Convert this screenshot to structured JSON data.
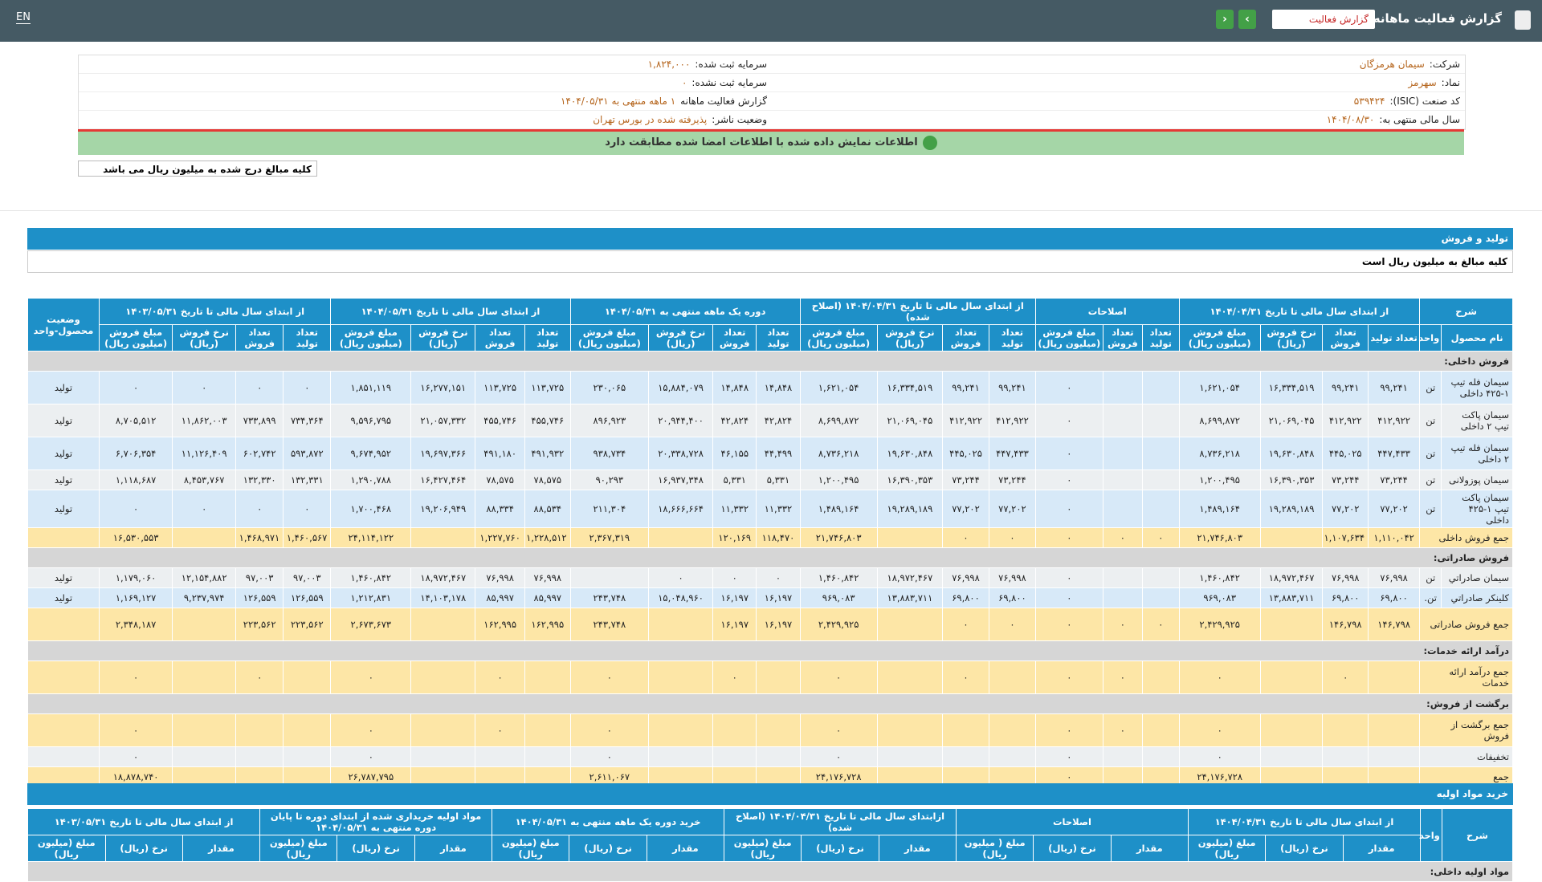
{
  "header": {
    "title": "گزارش فعالیت ماهانه",
    "select": "گزارش فعالیت",
    "lang": "EN"
  },
  "info": {
    "rows": [
      [
        {
          "label": "شرکت:",
          "value": "سیمان هرمزگان"
        },
        {
          "label": "سرمایه ثبت شده:",
          "value": "۱,۸۲۴,۰۰۰"
        }
      ],
      [
        {
          "label": "نماد:",
          "value": "سهرمز"
        },
        {
          "label": "سرمایه ثبت نشده:",
          "value": "۰"
        }
      ],
      [
        {
          "label": "کد صنعت (ISIC):",
          "value": "۵۳۹۴۲۴"
        },
        {
          "label": "گزارش فعالیت ماهانه",
          "value": "۱ ماهه منتهی به ۱۴۰۴/۰۵/۳۱"
        }
      ],
      [
        {
          "label": "سال مالی منتهی به:",
          "value": "۱۴۰۴/۰۸/۳۰"
        },
        {
          "label": "وضعیت ناشر:",
          "value": "پذیرفته شده در بورس تهران"
        }
      ]
    ],
    "notice": "اطلاعات نمایش داده شده با اطلاعات امضا شده مطابقت دارد",
    "note": "کلیه مبالغ درج شده به میلیون ریال می باشد"
  },
  "sales": {
    "title": "تولید و فروش",
    "subtitle": "کلیه مبالغ به میلیون ریال است",
    "group_headers": [
      "شرح",
      "از ابتدای سال مالی تا تاریخ ۱۴۰۴/۰۴/۳۱",
      "اصلاحات",
      "از ابتدای سال مالی تا تاریخ ۱۴۰۴/۰۴/۳۱ (اصلاح شده)",
      "دوره یک ماهه منتهی به ۱۴۰۴/۰۵/۳۱",
      "از ابتدای سال مالی تا تاریخ ۱۴۰۴/۰۵/۳۱",
      "از ابتدای سال مالی تا تاریخ ۱۴۰۳/۰۵/۳۱"
    ],
    "status_header": "وضعیت محصول-واحد",
    "col_headers": [
      "نام محصول",
      "واحد",
      "تعداد تولید",
      "تعداد فروش",
      "نرخ فروش (ریال)",
      "مبلغ فروش (میلیون ریال)",
      "تعداد تولید",
      "تعداد فروش",
      "مبلغ فروش (میلیون ریال)",
      "تعداد تولید",
      "تعداد فروش",
      "نرخ فروش (ریال)",
      "مبلغ فروش (میلیون ریال)",
      "تعداد تولید",
      "تعداد فروش",
      "نرخ فروش (ریال)",
      "مبلغ فروش (میلیون ریال)",
      "تعداد تولید",
      "تعداد فروش",
      "نرخ فروش (ریال)",
      "مبلغ فروش (میلیون ریال)",
      "تعداد تولید",
      "تعداد فروش",
      "نرخ فروش (ریال)",
      "مبلغ فروش (میلیون ریال)"
    ],
    "rows": [
      {
        "section": "فروش داخلی:"
      },
      {
        "name": "سیمان فله تیپ ۱-۴۲۵ داخلی",
        "unit": "تن",
        "cells": [
          "۹۹,۲۴۱",
          "۹۹,۲۴۱",
          "۱۶,۳۳۴,۵۱۹",
          "۱,۶۲۱,۰۵۴",
          null,
          null,
          "۰",
          "۹۹,۲۴۱",
          "۹۹,۲۴۱",
          "۱۶,۳۳۴,۵۱۹",
          "۱,۶۲۱,۰۵۴",
          "۱۴,۸۴۸",
          "۱۴,۸۴۸",
          "۱۵,۸۸۴,۰۷۹",
          "۲۳۰,۰۶۵",
          "۱۱۳,۷۲۵",
          "۱۱۳,۷۲۵",
          "۱۶,۲۷۷,۱۵۱",
          "۱,۸۵۱,۱۱۹",
          "۰",
          "۰",
          "۰",
          "۰"
        ],
        "status": "تولید"
      },
      {
        "name": "سیمان پاکت تیپ ۲ داخلی",
        "unit": "تن",
        "cells": [
          "۴۱۲,۹۲۲",
          "۴۱۲,۹۲۲",
          "۲۱,۰۶۹,۰۴۵",
          "۸,۶۹۹,۸۷۲",
          null,
          null,
          "۰",
          "۴۱۲,۹۲۲",
          "۴۱۲,۹۲۲",
          "۲۱,۰۶۹,۰۴۵",
          "۸,۶۹۹,۸۷۲",
          "۴۲,۸۲۴",
          "۴۲,۸۲۴",
          "۲۰,۹۴۴,۴۰۰",
          "۸۹۶,۹۲۳",
          "۴۵۵,۷۴۶",
          "۴۵۵,۷۴۶",
          "۲۱,۰۵۷,۳۳۲",
          "۹,۵۹۶,۷۹۵",
          "۷۳۴,۳۶۴",
          "۷۳۳,۸۹۹",
          "۱۱,۸۶۲,۰۰۳",
          "۸,۷۰۵,۵۱۲"
        ],
        "status": "تولید"
      },
      {
        "name": "سیمان فله تیپ ۲ داخلی",
        "unit": "تن",
        "cells": [
          "۴۴۷,۴۳۳",
          "۴۴۵,۰۲۵",
          "۱۹,۶۳۰,۸۴۸",
          "۸,۷۳۶,۲۱۸",
          null,
          null,
          "۰",
          "۴۴۷,۴۳۳",
          "۴۴۵,۰۲۵",
          "۱۹,۶۳۰,۸۴۸",
          "۸,۷۳۶,۲۱۸",
          "۴۴,۴۹۹",
          "۴۶,۱۵۵",
          "۲۰,۳۳۸,۷۲۸",
          "۹۳۸,۷۳۴",
          "۴۹۱,۹۳۲",
          "۴۹۱,۱۸۰",
          "۱۹,۶۹۷,۳۶۶",
          "۹,۶۷۴,۹۵۲",
          "۵۹۳,۸۷۲",
          "۶۰۲,۷۴۲",
          "۱۱,۱۲۶,۴۰۹",
          "۶,۷۰۶,۳۵۴"
        ],
        "status": "تولید"
      },
      {
        "name": "سیمان پوزولانی",
        "unit": "تن",
        "cells": [
          "۷۳,۲۴۴",
          "۷۳,۲۴۴",
          "۱۶,۳۹۰,۳۵۳",
          "۱,۲۰۰,۴۹۵",
          null,
          null,
          "۰",
          "۷۳,۲۴۴",
          "۷۳,۲۴۴",
          "۱۶,۳۹۰,۳۵۳",
          "۱,۲۰۰,۴۹۵",
          "۵,۳۳۱",
          "۵,۳۳۱",
          "۱۶,۹۳۷,۳۴۸",
          "۹۰,۲۹۳",
          "۷۸,۵۷۵",
          "۷۸,۵۷۵",
          "۱۶,۴۲۷,۴۶۴",
          "۱,۲۹۰,۷۸۸",
          "۱۳۲,۳۳۱",
          "۱۳۲,۳۳۰",
          "۸,۴۵۳,۷۶۷",
          "۱,۱۱۸,۶۸۷"
        ],
        "status": "تولید"
      },
      {
        "name": "سیمان پاکت تیپ ۱-۴۲۵ داخلی",
        "unit": "تن",
        "cells": [
          "۷۷,۲۰۲",
          "۷۷,۲۰۲",
          "۱۹,۲۸۹,۱۸۹",
          "۱,۴۸۹,۱۶۴",
          null,
          null,
          "۰",
          "۷۷,۲۰۲",
          "۷۷,۲۰۲",
          "۱۹,۲۸۹,۱۸۹",
          "۱,۴۸۹,۱۶۴",
          "۱۱,۳۳۲",
          "۱۱,۳۳۲",
          "۱۸,۶۶۶,۶۶۴",
          "۲۱۱,۳۰۴",
          "۸۸,۵۳۴",
          "۸۸,۳۳۴",
          "۱۹,۲۰۶,۹۴۹",
          "۱,۷۰۰,۴۶۸",
          "۰",
          "۰",
          "۰",
          "۰"
        ],
        "status": "تولید"
      },
      {
        "name": "جمع فروش داخلی",
        "total": true,
        "cells": [
          "۱,۱۱۰,۰۴۲",
          "۱,۱۰۷,۶۳۴",
          null,
          "۲۱,۷۴۶,۸۰۳",
          "۰",
          "۰",
          "۰",
          "۰",
          "۰",
          null,
          "۲۱,۷۴۶,۸۰۳",
          "۱۱۸,۴۷۰",
          "۱۲۰,۱۶۹",
          null,
          "۲,۳۶۷,۳۱۹",
          "۱,۲۲۸,۵۱۲",
          "۱,۲۲۷,۷۶۰",
          null,
          "۲۴,۱۱۴,۱۲۲",
          "۱,۴۶۰,۵۶۷",
          "۱,۴۶۸,۹۷۱",
          null,
          "۱۶,۵۳۰,۵۵۳"
        ]
      },
      {
        "section": "فروش صادراتی:"
      },
      {
        "name": "سیمان صادراتي",
        "unit": "تن",
        "cells": [
          "۷۶,۹۹۸",
          "۷۶,۹۹۸",
          "۱۸,۹۷۲,۴۶۷",
          "۱,۴۶۰,۸۴۲",
          null,
          null,
          "۰",
          "۷۶,۹۹۸",
          "۷۶,۹۹۸",
          "۱۸,۹۷۲,۴۶۷",
          "۱,۴۶۰,۸۴۲",
          "۰",
          "۰",
          "۰",
          null,
          "۷۶,۹۹۸",
          "۷۶,۹۹۸",
          "۱۸,۹۷۲,۴۶۷",
          "۱,۴۶۰,۸۴۲",
          "۹۷,۰۰۳",
          "۹۷,۰۰۳",
          "۱۲,۱۵۴,۸۸۲",
          "۱,۱۷۹,۰۶۰"
        ],
        "status": "تولید"
      },
      {
        "name": "کلینکر صادراتي",
        "unit": "تن.",
        "cells": [
          "۶۹,۸۰۰",
          "۶۹,۸۰۰",
          "۱۳,۸۸۳,۷۱۱",
          "۹۶۹,۰۸۳",
          null,
          null,
          "۰",
          "۶۹,۸۰۰",
          "۶۹,۸۰۰",
          "۱۳,۸۸۳,۷۱۱",
          "۹۶۹,۰۸۳",
          "۱۶,۱۹۷",
          "۱۶,۱۹۷",
          "۱۵,۰۴۸,۹۶۰",
          "۲۴۳,۷۴۸",
          "۸۵,۹۹۷",
          "۸۵,۹۹۷",
          "۱۴,۱۰۳,۱۷۸",
          "۱,۲۱۲,۸۳۱",
          "۱۲۶,۵۵۹",
          "۱۲۶,۵۵۹",
          "۹,۲۳۷,۹۷۴",
          "۱,۱۶۹,۱۲۷"
        ],
        "status": "تولید"
      },
      {
        "name": "جمع فروش صادراتی",
        "total": true,
        "cells": [
          "۱۴۶,۷۹۸",
          "۱۴۶,۷۹۸",
          null,
          "۲,۴۲۹,۹۲۵",
          "۰",
          "۰",
          "۰",
          "۰",
          "۰",
          null,
          "۲,۴۲۹,۹۲۵",
          "۱۶,۱۹۷",
          "۱۶,۱۹۷",
          null,
          "۲۴۳,۷۴۸",
          "۱۶۲,۹۹۵",
          "۱۶۲,۹۹۵",
          null,
          "۲,۶۷۳,۶۷۳",
          "۲۲۳,۵۶۲",
          "۲۲۳,۵۶۲",
          null,
          "۲,۳۴۸,۱۸۷"
        ]
      },
      {
        "section": "درآمد ارائه خدمات:"
      },
      {
        "name": "جمع درآمد ارائه خدمات",
        "total": true,
        "cells": [
          null,
          "۰",
          null,
          "۰",
          null,
          "۰",
          "۰",
          null,
          "۰",
          null,
          "۰",
          null,
          "۰",
          null,
          "۰",
          null,
          "۰",
          null,
          "۰",
          null,
          "۰",
          null,
          "۰"
        ]
      },
      {
        "section": "برگشت از فروش:"
      },
      {
        "name": "جمع برگشت از فروش",
        "total": true,
        "cells": [
          null,
          null,
          null,
          "۰",
          null,
          "۰",
          "۰",
          null,
          null,
          null,
          "۰",
          null,
          null,
          null,
          "۰",
          null,
          "۰",
          null,
          "۰",
          null,
          null,
          null,
          "۰"
        ]
      },
      {
        "name": "تخفیفات",
        "cells": [
          null,
          null,
          null,
          "۰",
          null,
          null,
          "۰",
          null,
          null,
          null,
          "۰",
          null,
          null,
          null,
          "۰",
          null,
          null,
          null,
          "۰",
          null,
          null,
          null,
          "۰"
        ]
      },
      {
        "name": "جمع",
        "total": true,
        "cells": [
          null,
          null,
          null,
          "۲۴,۱۷۶,۷۲۸",
          null,
          null,
          "۰",
          null,
          null,
          null,
          "۲۴,۱۷۶,۷۲۸",
          null,
          null,
          null,
          "۲,۶۱۱,۰۶۷",
          null,
          null,
          null,
          "۲۶,۷۸۷,۷۹۵",
          null,
          null,
          null,
          "۱۸,۸۷۸,۷۴۰"
        ]
      }
    ]
  },
  "purchase": {
    "title": "خرید مواد اولیه",
    "group_headers": [
      "شرح",
      "واحد",
      "از ابتدای سال مالی تا تاریخ ۱۴۰۴/۰۴/۳۱",
      "اصلاحات",
      "ازابتدای سال مالی تا تاریخ ۱۴۰۴/۰۴/۳۱ (اصلاح شده)",
      "خرید دوره یک ماهه منتهی به ۱۴۰۴/۰۵/۳۱",
      "مواد اولیه خریداری شده از ابتدای دوره تا پایان دوره منتهی به ۱۴۰۴/۰۵/۳۱",
      "از ابتدای سال مالی تا تاریخ ۱۴۰۳/۰۵/۳۱"
    ],
    "col_headers": [
      "مقدار",
      "نرخ (ریال)",
      "مبلغ (میلیون ریال)",
      "مقدار",
      "نرخ (ریال)",
      "مبلغ ( میلیون ریال)",
      "مقدار",
      "نرخ (ریال)",
      "مبلغ (میلیون ریال)",
      "مقدار",
      "نرخ (ریال)",
      "مبلغ (میلیون ریال)",
      "مقدار",
      "نرخ (ریال)",
      "مبلغ (میلیون ریال)",
      "مقدار",
      "نرخ (ریال)",
      "مبلغ (میلیون ریال)"
    ],
    "section": "مواد اولیه داخلی:"
  }
}
